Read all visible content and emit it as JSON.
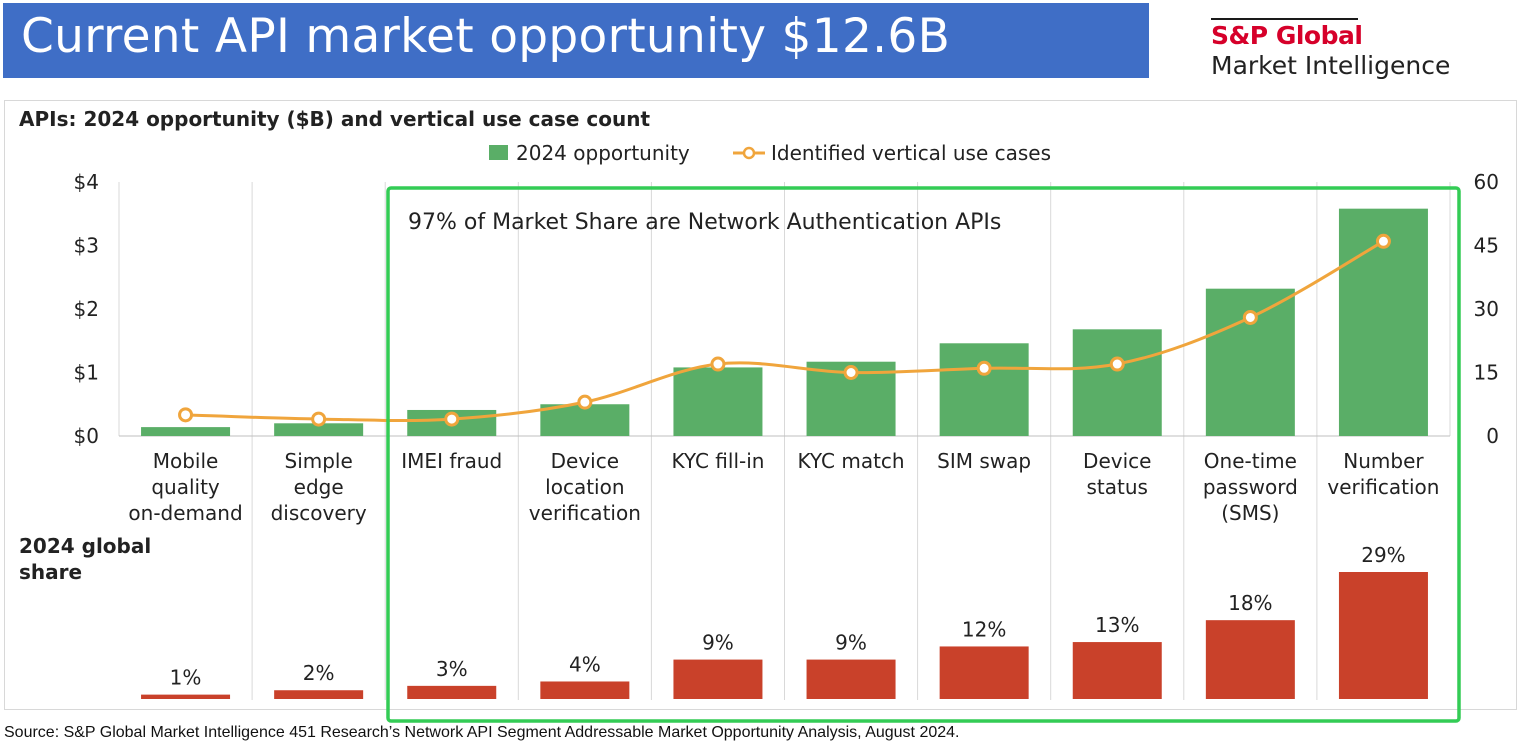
{
  "page": {
    "title": "Current API market opportunity $12.6B",
    "logo_line1": "S&P Global",
    "logo_line2": "Market Intelligence",
    "source": "Source: S&P Global Market Intelligence 451 Research’s Network API Segment Addressable Market Opportunity Analysis, August 2024."
  },
  "colors": {
    "banner": "#3f6ec6",
    "bar": "#5aae67",
    "line": "#f0a53c",
    "share_bar": "#c9412a",
    "highlight_box": "#33cc55",
    "logo_red": "#d6002a"
  },
  "chart_data": [
    {
      "type": "bar",
      "title": "APIs: 2024 opportunity ($B) and vertical use case count",
      "legend": [
        "2024 opportunity",
        "Identified vertical use cases"
      ],
      "legend_position": "top-center",
      "categories": [
        [
          "Mobile",
          "quality",
          "on-demand"
        ],
        [
          "Simple",
          "edge",
          "discovery"
        ],
        [
          "IMEI fraud"
        ],
        [
          "Device",
          "location",
          "verification"
        ],
        [
          "KYC fill-in"
        ],
        [
          "KYC match"
        ],
        [
          "SIM swap"
        ],
        [
          "Device",
          "status"
        ],
        [
          "One-time",
          "password",
          "(SMS)"
        ],
        [
          "Number",
          "verification"
        ]
      ],
      "series": [
        {
          "name": "2024 opportunity",
          "type": "bar",
          "axis": "left",
          "values": [
            0.14,
            0.2,
            0.41,
            0.5,
            1.08,
            1.17,
            1.46,
            1.68,
            2.32,
            3.58
          ]
        },
        {
          "name": "Identified vertical use cases",
          "type": "line",
          "axis": "right",
          "values": [
            5,
            4,
            4,
            8,
            17,
            15,
            16,
            17,
            28,
            46
          ]
        }
      ],
      "y_left": {
        "ylim": [
          0,
          4
        ],
        "ticks": [
          "$0",
          "$1",
          "$2",
          "$3",
          "$4"
        ]
      },
      "y_right": {
        "ylim": [
          0,
          60
        ],
        "ticks": [
          "0",
          "15",
          "30",
          "45",
          "60"
        ]
      },
      "grid": "vertical separators",
      "annotation": "97% of Market Share are Network Authentication APIs",
      "highlight_range": "IMEI fraud to Number verification"
    },
    {
      "type": "bar",
      "title_lines": [
        "2024 global",
        "share"
      ],
      "values": [
        1,
        2,
        3,
        4,
        9,
        9,
        12,
        13,
        18,
        29
      ],
      "labels": [
        "1%",
        "2%",
        "3%",
        "4%",
        "9%",
        "9%",
        "12%",
        "13%",
        "18%",
        "29%"
      ]
    }
  ]
}
